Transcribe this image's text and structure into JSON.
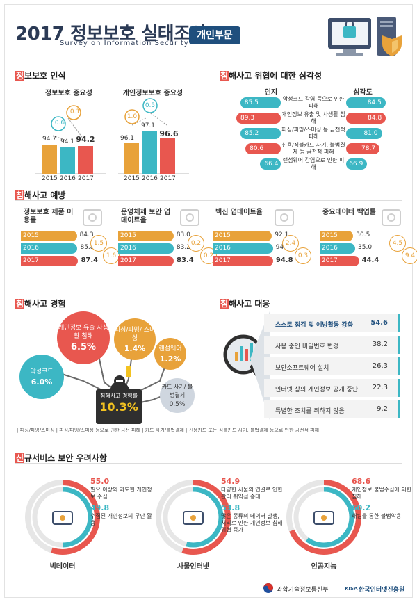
{
  "header": {
    "title": "2017 정보보호 실태조사",
    "subtitle": "Survey on Information Security",
    "badge": "개인부문"
  },
  "colors": {
    "teal": "#3cb7c4",
    "orange": "#e8a23a",
    "red": "#e8574f",
    "navy": "#1f4f7d",
    "gray": "#8a8a8a"
  },
  "awareness": {
    "title_first": "정",
    "title_rest": "보보호 인식",
    "charts": [
      {
        "title": "정보보호 중요성",
        "years": [
          "2015",
          "2016",
          "2017"
        ],
        "values": [
          "94.7",
          "94.1",
          "94.2"
        ],
        "changes": [
          "0.6",
          "0.1"
        ]
      },
      {
        "title": "개인정보보호 중요성",
        "years": [
          "2015",
          "2016",
          "2017"
        ],
        "values": [
          "96.1",
          "97.1",
          "96.6"
        ],
        "changes": [
          "1.0",
          "0.5"
        ]
      }
    ]
  },
  "threat": {
    "title_first": "침",
    "title_rest": "해사고 위협에 대한 심각성",
    "left_header": "인지",
    "right_header": "심각도",
    "rows": [
      {
        "label": "악성코드 감염 등으로 인한 피해",
        "left": "85.5",
        "right": "84.5"
      },
      {
        "label": "개인정보 유출 및 사생활 침해",
        "left": "89.3",
        "right": "84.8"
      },
      {
        "label": "피싱/파밍/스미싱 등 금전적 피해",
        "left": "85.2",
        "right": "81.0"
      },
      {
        "label": "신용/직불카드 사기, 불법결제 등 금전적 피해",
        "left": "80.6",
        "right": "78.7"
      },
      {
        "label": "랜섬웨어 감염으로 인한 피해",
        "left": "66.4",
        "right": "66.9"
      }
    ]
  },
  "prevention": {
    "title_first": "침",
    "title_rest": "해사고 예방",
    "groups": [
      {
        "title": "정보보호 제품 이용률",
        "rows": [
          {
            "year": "2015",
            "value": "84.3"
          },
          {
            "year": "2016",
            "value": "85.8"
          },
          {
            "year": "2017",
            "value": "87.4"
          }
        ],
        "changes": [
          "1.5",
          "1.6"
        ]
      },
      {
        "title": "운영체제 보안 업데이트율",
        "rows": [
          {
            "year": "2015",
            "value": "83.0"
          },
          {
            "year": "2016",
            "value": "83.2"
          },
          {
            "year": "2017",
            "value": "83.4"
          }
        ],
        "changes": [
          "0.2",
          "0.2"
        ]
      },
      {
        "title": "백신 업데이트율",
        "rows": [
          {
            "year": "2015",
            "value": "92.1"
          },
          {
            "year": "2016",
            "value": "94.5"
          },
          {
            "year": "2017",
            "value": "94.8"
          }
        ],
        "changes": [
          "2.4",
          "0.3"
        ]
      },
      {
        "title": "중요데이터 백업률",
        "rows": [
          {
            "year": "2015",
            "value": "30.5"
          },
          {
            "year": "2016",
            "value": "35.0"
          },
          {
            "year": "2017",
            "value": "44.4"
          }
        ],
        "changes": [
          "4.5",
          "9.4"
        ]
      }
    ]
  },
  "experience": {
    "title_first": "침",
    "title_rest": "해사고 경험",
    "center_label": "침해사고 경험률",
    "center_value": "10.3%",
    "bubbles": [
      {
        "label": "개인정보 유출 사생활 침해",
        "value": "6.5%"
      },
      {
        "label": "피싱/파밍/ 스미싱",
        "value": "1.4%"
      },
      {
        "label": "랜섬웨어",
        "value": "1.2%"
      },
      {
        "label": "악성코드",
        "value": "6.0%"
      },
      {
        "label": "카드 사기/ 불법결제",
        "value": "0.5%"
      }
    ],
    "footnote": "| 피싱/파밍/스미싱 | 피싱/파밍/스미싱 등으로 인한 금전 피해   | 카드 사기/불법결제 | 신용카드 또는 직불카드 사기, 불법결제 등으로 인한 금전적 피해"
  },
  "response": {
    "title_first": "침",
    "title_rest": "해사고 대응",
    "rows": [
      {
        "label": "스스로 점검 및 예방활동 강화",
        "value": "54.6"
      },
      {
        "label": "사용 중인 비밀번호 변경",
        "value": "38.2"
      },
      {
        "label": "보안소프트웨어 설치",
        "value": "26.3"
      },
      {
        "label": "인터넷 상의 개인정보 공개 중단",
        "value": "22.3"
      },
      {
        "label": "특별한 조치를 취하지 않음",
        "value": "9.2"
      }
    ]
  },
  "newservice": {
    "title_first": "신",
    "title_rest": "규서비스 보안 우려사항",
    "items": [
      {
        "name": "빅데이터",
        "top_value": "55.0",
        "top_label": "필요 이상의 과도한 개인정보 수집",
        "bottom_value": "49.8",
        "bottom_label": "수집된 개인정보의 무단 활용"
      },
      {
        "name": "사물인터넷",
        "top_value": "54.9",
        "top_label": "다양한 사물의 연결로 인한 관리 취약점 증대",
        "bottom_value": "53.8",
        "bottom_label": "많은 종류의 데이터 발생, 처리로 인한 개인정보 침해 위협 증가"
      },
      {
        "name": "인공지능",
        "top_value": "68.6",
        "top_label": "개인정보 불법수집에 의한 침해",
        "bottom_value": "60.2",
        "bottom_label": "해킹을 통한 불법악용"
      }
    ]
  },
  "footer": {
    "ministry": "과학기술정보통신부",
    "kisa_mark": "KISA",
    "kisa": "한국인터넷진흥원"
  }
}
